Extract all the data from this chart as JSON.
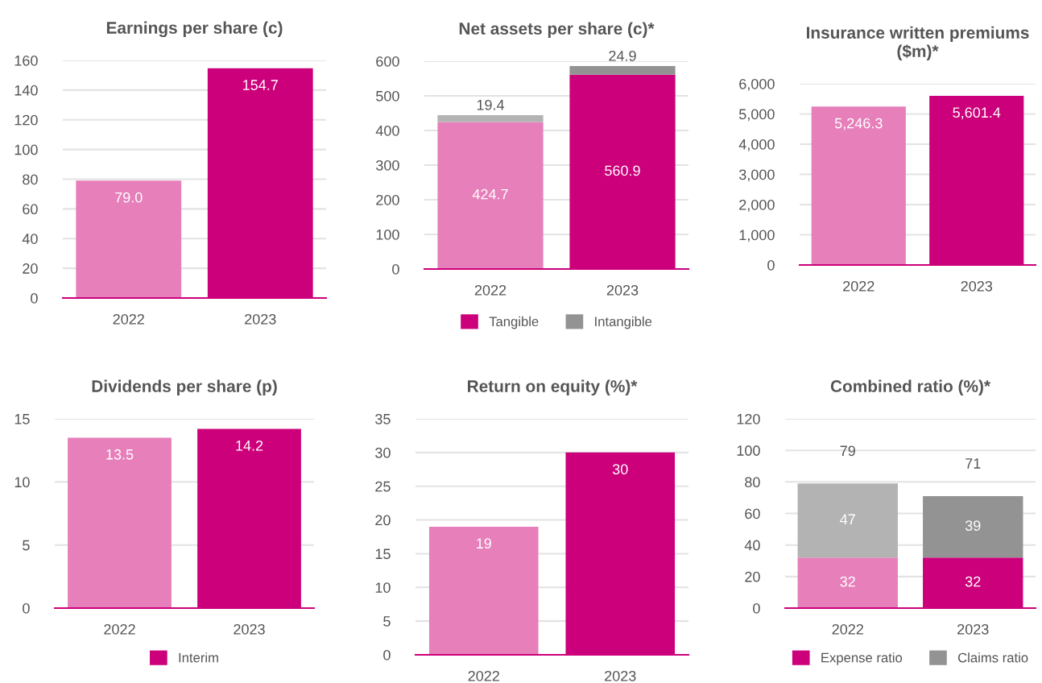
{
  "chart_data": [
    {
      "type": "bar",
      "title": "Earnings per share (c)",
      "categories": [
        "2022",
        "2023"
      ],
      "values": [
        79.0,
        154.7
      ],
      "colors": [
        "#e67fba",
        "#cc007a"
      ],
      "value_labels": [
        "79.0",
        "154.7"
      ],
      "ylim": [
        0,
        160
      ],
      "yticks": [
        0,
        20,
        40,
        60,
        80,
        100,
        120,
        140,
        160
      ],
      "grid": "y"
    },
    {
      "type": "bar",
      "title": "Net assets per share (c)*",
      "categories": [
        "2022",
        "2023"
      ],
      "stacked": true,
      "series": [
        {
          "name": "Tangible",
          "colors": [
            "#e67fba",
            "#cc007a"
          ],
          "values": [
            424.7,
            560.9
          ],
          "value_labels": [
            "424.7",
            "560.9"
          ]
        },
        {
          "name": "Intangible",
          "colors": [
            "#b3b3b3",
            "#939393"
          ],
          "values": [
            19.4,
            24.9
          ],
          "value_labels": [
            "19.4",
            "24.9"
          ]
        }
      ],
      "ylim": [
        0,
        600
      ],
      "yticks": [
        0,
        100,
        200,
        300,
        400,
        500,
        600
      ],
      "grid": "y",
      "legend": "bottom"
    },
    {
      "type": "bar",
      "title": "Insurance written premiums\n($m)*",
      "categories": [
        "2022",
        "2023"
      ],
      "values": [
        5246.3,
        5601.4
      ],
      "colors": [
        "#e67fba",
        "#cc007a"
      ],
      "value_labels": [
        "5,246.3",
        "5,601.4"
      ],
      "ylim": [
        0,
        6000
      ],
      "yticks": [
        0,
        {
          "value": 1000,
          "label": "1,000"
        },
        {
          "value": 2000,
          "label": "2,000"
        },
        {
          "value": 3000,
          "label": "3,000"
        },
        {
          "value": 4000,
          "label": "4,000"
        },
        {
          "value": 5000,
          "label": "5,000"
        },
        {
          "value": 6000,
          "label": "6,000"
        }
      ],
      "grid": "y"
    },
    {
      "type": "bar",
      "title": "Dividends per share (p)",
      "categories": [
        "2022",
        "2023"
      ],
      "series": [
        {
          "name": "Interim",
          "colors": [
            "#e67fba",
            "#cc007a"
          ],
          "values": [
            13.5,
            14.2
          ],
          "value_labels": [
            "13.5",
            "14.2"
          ]
        }
      ],
      "ylim": [
        0,
        15
      ],
      "yticks": [
        0,
        5,
        10,
        15
      ],
      "grid": "y",
      "legend": "bottom"
    },
    {
      "type": "bar",
      "title": "Return on equity (%)*",
      "categories": [
        "2022",
        "2023"
      ],
      "values": [
        19,
        30
      ],
      "colors": [
        "#e67fba",
        "#cc007a"
      ],
      "value_labels": [
        "19",
        "30"
      ],
      "ylim": [
        0,
        35
      ],
      "yticks": [
        0,
        5,
        10,
        15,
        20,
        25,
        30,
        35
      ],
      "grid": "y"
    },
    {
      "type": "bar",
      "title": "Combined ratio (%)*",
      "categories": [
        "2022",
        "2023"
      ],
      "stacked": true,
      "series": [
        {
          "name": "Expense ratio",
          "colors": [
            "#e67fba",
            "#cc007a"
          ],
          "values": [
            32,
            32
          ],
          "value_labels": [
            "32",
            "32"
          ]
        },
        {
          "name": "Claims ratio",
          "colors": [
            "#b3b3b3",
            "#939393"
          ],
          "values": [
            47,
            39
          ],
          "value_labels": [
            "47",
            "39"
          ]
        }
      ],
      "totals": [
        "79",
        "71"
      ],
      "ylim": [
        0,
        120
      ],
      "yticks": [
        0,
        20,
        40,
        60,
        80,
        100,
        120
      ],
      "grid": "y",
      "legend": "bottom"
    }
  ]
}
